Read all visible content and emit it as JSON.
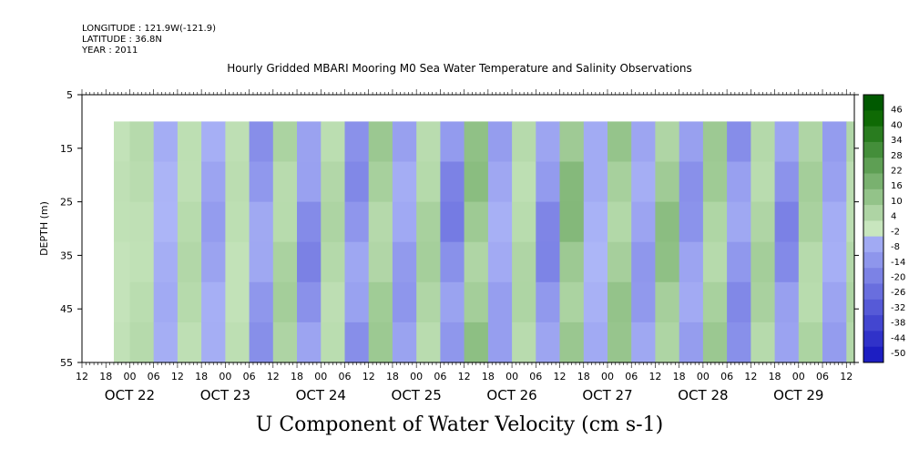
{
  "header": {
    "longitude": "LONGITUDE : 121.9W(-121.9)",
    "latitude": "LATITUDE : 36.8N",
    "year": "YEAR : 2011"
  },
  "title": "Hourly Gridded MBARI Mooring M0 Sea Water Temperature and Salinity Observations",
  "bottom_title": "U Component of Water Velocity (cm s-1)",
  "chart_data": {
    "type": "heatmap",
    "xlabel": "",
    "ylabel": "DEPTH (m)",
    "y_ticks": [
      5,
      15,
      25,
      35,
      45,
      55
    ],
    "ylim": [
      5,
      55
    ],
    "y_reversed": true,
    "data_depth_range": [
      10,
      55
    ],
    "x_hour_labels": [
      "12",
      "18",
      "00",
      "06",
      "12",
      "18",
      "00",
      "06",
      "12",
      "18",
      "00",
      "06",
      "12",
      "18",
      "00",
      "06",
      "12",
      "18",
      "00",
      "06",
      "12",
      "18",
      "00",
      "06",
      "12",
      "18",
      "00",
      "06",
      "12",
      "18",
      "00",
      "06",
      "12"
    ],
    "x_day_labels": [
      "OCT 22",
      "OCT 23",
      "OCT 24",
      "OCT 25",
      "OCT 26",
      "OCT 27",
      "OCT 28",
      "OCT 29"
    ],
    "x_range_hours": "OCT 21 12:00 to OCT 29 14:00",
    "data_start": "OCT 21 ~20:00",
    "colorbar_labels": [
      "46",
      "40",
      "34",
      "28",
      "22",
      "16",
      "10",
      "4",
      "-2",
      "-8",
      "-14",
      "-20",
      "-26",
      "-32",
      "-38",
      "-44",
      "-50"
    ],
    "colorbar_range": [
      -50,
      50
    ],
    "pattern_columns": [
      {
        "day": "OCT 21 20:00",
        "value": 2
      },
      {
        "day": "OCT 22 00:00",
        "value": 4
      },
      {
        "day": "OCT 22 06:00",
        "value": -6
      },
      {
        "day": "OCT 22 12:00",
        "value": 5
      },
      {
        "day": "OCT 22 18:00",
        "value": -10
      },
      {
        "day": "OCT 23 00:00",
        "value": 3
      },
      {
        "day": "OCT 23 06:00",
        "value": -14
      },
      {
        "day": "OCT 23 12:00",
        "value": 8
      },
      {
        "day": "OCT 23 18:00",
        "value": -18
      },
      {
        "day": "OCT 24 00:00",
        "value": 6
      },
      {
        "day": "OCT 24 06:00",
        "value": -16
      },
      {
        "day": "OCT 24 12:00",
        "value": 10
      },
      {
        "day": "OCT 24 18:00",
        "value": -12
      },
      {
        "day": "OCT 25 00:00",
        "value": 8
      },
      {
        "day": "OCT 25 06:00",
        "value": -20
      },
      {
        "day": "OCT 25 12:00",
        "value": 14
      },
      {
        "day": "OCT 25 18:00",
        "value": -10
      },
      {
        "day": "OCT 26 00:00",
        "value": 6
      },
      {
        "day": "OCT 26 06:00",
        "value": -18
      },
      {
        "day": "OCT 26 12:00",
        "value": 16
      },
      {
        "day": "OCT 26 18:00",
        "value": -6
      },
      {
        "day": "OCT 27 00:00",
        "value": 12
      },
      {
        "day": "OCT 27 06:00",
        "value": -12
      },
      {
        "day": "OCT 27 12:00",
        "value": 14
      },
      {
        "day": "OCT 27 18:00",
        "value": -14
      },
      {
        "day": "OCT 28 00:00",
        "value": 10
      },
      {
        "day": "OCT 28 06:00",
        "value": -16
      },
      {
        "day": "OCT 28 12:00",
        "value": 8
      },
      {
        "day": "OCT 28 18:00",
        "value": -18
      },
      {
        "day": "OCT 29 00:00",
        "value": 8
      },
      {
        "day": "OCT 29 06:00",
        "value": -10
      },
      {
        "day": "OCT 29 12:00",
        "value": 6
      }
    ]
  }
}
